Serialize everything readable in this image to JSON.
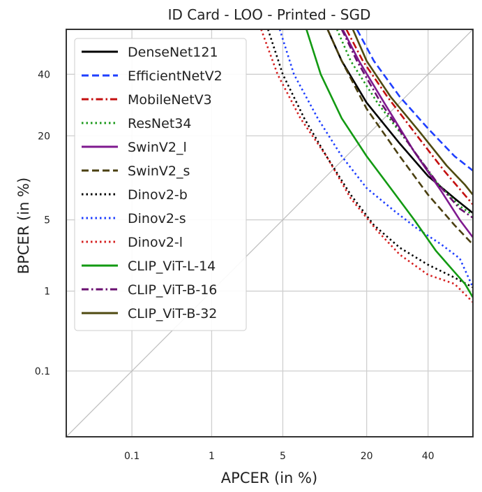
{
  "chart_data": {
    "type": "line",
    "title": "ID Card - LOO - Printed - SGD",
    "xlabel": "APCER (in %)",
    "ylabel": "BPCER (in %)",
    "xscale": "probit",
    "yscale": "probit",
    "xlim": [
      0.01,
      57
    ],
    "ylim": [
      0.01,
      57
    ],
    "xticks": [
      0.1,
      1,
      5,
      20,
      40
    ],
    "xtick_labels": [
      "0.1",
      "1",
      "5",
      "20",
      "40"
    ],
    "yticks": [
      0.1,
      1,
      5,
      20,
      40
    ],
    "ytick_labels": [
      "0.1",
      "1",
      "5",
      "20",
      "40"
    ],
    "grid": true,
    "diagonal_reference": true,
    "legend_position": "upper-left",
    "series": [
      {
        "name": "DenseNet121",
        "color": "#000000",
        "dash": "solid",
        "points": [
          [
            11.2,
            57
          ],
          [
            14,
            45
          ],
          [
            20,
            30
          ],
          [
            30,
            18
          ],
          [
            40,
            11
          ],
          [
            50,
            7.5
          ],
          [
            57,
            5.7
          ]
        ]
      },
      {
        "name": "EfficientNetV2",
        "color": "#1f3fff",
        "dash": "dashed",
        "points": [
          [
            17.5,
            57
          ],
          [
            22,
            45
          ],
          [
            30,
            32
          ],
          [
            40,
            22
          ],
          [
            50,
            15
          ],
          [
            57,
            12
          ]
        ]
      },
      {
        "name": "MobileNetV3",
        "color": "#c41010",
        "dash": "dashdot",
        "points": [
          [
            15,
            57
          ],
          [
            19,
            45
          ],
          [
            26,
            32
          ],
          [
            36,
            20
          ],
          [
            46,
            12
          ],
          [
            55,
            7.5
          ],
          [
            57,
            6.7
          ]
        ]
      },
      {
        "name": "ResNet34",
        "color": "#1a9a1a",
        "dash": "dotted",
        "points": [
          [
            13,
            57
          ],
          [
            16,
            45
          ],
          [
            23,
            30
          ],
          [
            33,
            18
          ],
          [
            43,
            10
          ],
          [
            52,
            6.5
          ],
          [
            57,
            5.5
          ]
        ]
      },
      {
        "name": "SwinV2_l",
        "color": "#7f1a8f",
        "dash": "solid",
        "points": [
          [
            14.2,
            57
          ],
          [
            18,
            45
          ],
          [
            25,
            30
          ],
          [
            35,
            16
          ],
          [
            45,
            8.5
          ],
          [
            52,
            5
          ],
          [
            57,
            3.5
          ]
        ]
      },
      {
        "name": "SwinV2_s",
        "color": "#4a3f10",
        "dash": "dashed",
        "points": [
          [
            11.2,
            57
          ],
          [
            14,
            45
          ],
          [
            20,
            28
          ],
          [
            30,
            15
          ],
          [
            40,
            8
          ],
          [
            50,
            4.5
          ],
          [
            57,
            3
          ]
        ]
      },
      {
        "name": "Dinov2-b",
        "color": "#000000",
        "dash": "dotted",
        "points": [
          [
            3.7,
            57
          ],
          [
            5,
            40
          ],
          [
            7.5,
            25
          ],
          [
            11,
            15
          ],
          [
            16,
            8
          ],
          [
            22,
            4.5
          ],
          [
            30,
            2.8
          ],
          [
            40,
            1.9
          ],
          [
            50,
            1.4
          ],
          [
            57,
            1.1
          ]
        ]
      },
      {
        "name": "Dinov2-s",
        "color": "#1f3fff",
        "dash": "dotted",
        "points": [
          [
            4.7,
            57
          ],
          [
            6.2,
            40
          ],
          [
            9.5,
            25
          ],
          [
            14,
            15
          ],
          [
            20,
            9
          ],
          [
            28,
            6
          ],
          [
            36,
            4.2
          ],
          [
            45,
            3
          ],
          [
            52,
            2.2
          ],
          [
            57,
            1.1
          ]
        ]
      },
      {
        "name": "Dinov2-l",
        "color": "#d62020",
        "dash": "dotted",
        "points": [
          [
            3.2,
            57
          ],
          [
            4.5,
            40
          ],
          [
            7,
            25
          ],
          [
            11,
            15
          ],
          [
            16,
            7.5
          ],
          [
            23,
            4
          ],
          [
            30,
            2.4
          ],
          [
            40,
            1.5
          ],
          [
            50,
            1.2
          ],
          [
            57,
            0.75
          ]
        ]
      },
      {
        "name": "CLIP_ViT-L-14",
        "color": "#129a12",
        "dash": "solid",
        "points": [
          [
            7.8,
            57
          ],
          [
            10,
            40
          ],
          [
            14,
            25
          ],
          [
            20,
            15
          ],
          [
            27,
            9
          ],
          [
            35,
            5
          ],
          [
            43,
            2.6
          ],
          [
            50,
            1.6
          ],
          [
            54,
            1.2
          ],
          [
            57,
            0.85
          ]
        ]
      },
      {
        "name": "CLIP_ViT-B-16",
        "color": "#6a1070",
        "dash": "dashdot",
        "points": [
          [
            14,
            57
          ],
          [
            17.5,
            45
          ],
          [
            24,
            30
          ],
          [
            34,
            17
          ],
          [
            44,
            9.5
          ],
          [
            52,
            6.2
          ],
          [
            57,
            5.2
          ]
        ]
      },
      {
        "name": "CLIP_ViT-B-32",
        "color": "#4f4a10",
        "dash": "solid",
        "points": [
          [
            16.5,
            57
          ],
          [
            20,
            45
          ],
          [
            27,
            32
          ],
          [
            37,
            21
          ],
          [
            47,
            13
          ],
          [
            54,
            9.5
          ],
          [
            57,
            8
          ]
        ]
      }
    ]
  }
}
